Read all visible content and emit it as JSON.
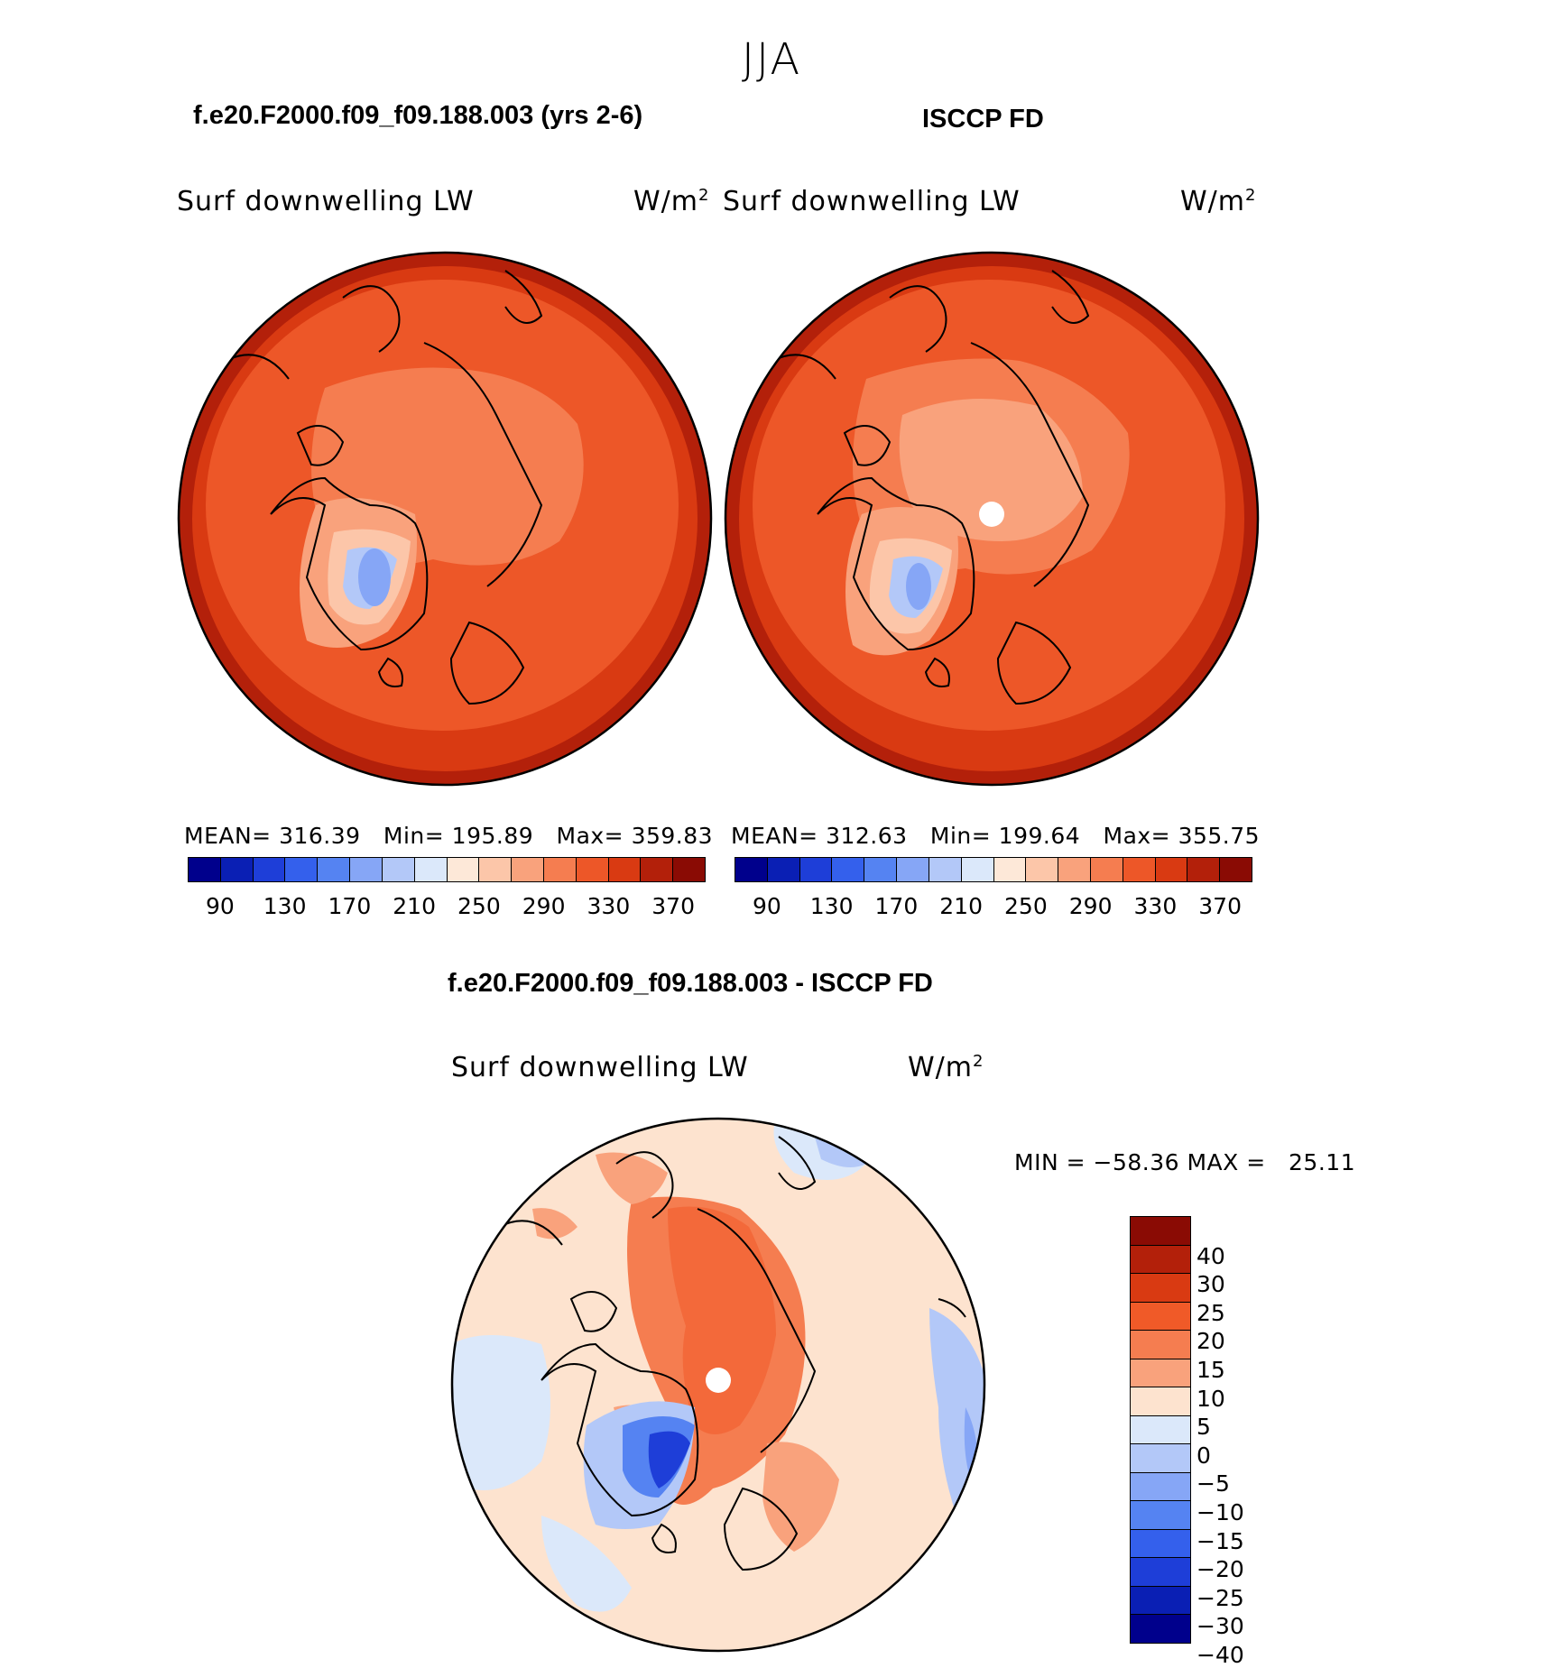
{
  "figure": {
    "season": "JJA",
    "model_title": "f.e20.F2000.f09_f09.188.003 (yrs 2-6)",
    "obs_title": "ISCCP FD",
    "diff_title": "f.e20.F2000.f09_f09.188.003 - ISCCP FD"
  },
  "panels": {
    "model": {
      "variable": "Surf downwelling LW",
      "units": "W/m",
      "units_sup": "2",
      "mean_label": "MEAN=",
      "mean": "316.39",
      "min_label": "Min=",
      "min": "195.89",
      "max_label": "Max=",
      "max": "359.83"
    },
    "obs": {
      "variable": "Surf downwelling LW",
      "units": "W/m",
      "units_sup": "2",
      "mean_label": "MEAN=",
      "mean": "312.63",
      "min_label": "Min=",
      "min": "199.64",
      "max_label": "Max=",
      "max": "355.75"
    },
    "diff": {
      "variable": "Surf downwelling LW",
      "units": "W/m",
      "units_sup": "2",
      "min_label": "MIN =",
      "min": "−58.36",
      "max_label": "MAX =",
      "max": "25.11"
    }
  },
  "colorbars": {
    "absolute": {
      "colors": [
        "#00008c",
        "#0a1fb4",
        "#1e3ed8",
        "#3460ec",
        "#5583f2",
        "#86a6f6",
        "#b3c8f8",
        "#dbe8fa",
        "#fde8d8",
        "#fcc6a9",
        "#f9a27c",
        "#f57d50",
        "#ed5728",
        "#d93a12",
        "#b3200a",
        "#8a0b04"
      ],
      "ticks": [
        "90",
        "130",
        "170",
        "210",
        "250",
        "290",
        "330",
        "370"
      ]
    },
    "difference": {
      "colors": [
        "#8a0b04",
        "#b3200a",
        "#d93a12",
        "#f05a28",
        "#f57d50",
        "#f9a27c",
        "#fde3cf",
        "#dbe8fa",
        "#b3c8f8",
        "#86a6f6",
        "#5583f2",
        "#3460ec",
        "#1e3ed8",
        "#0a1fb4",
        "#00008c"
      ],
      "ticks": [
        "40",
        "30",
        "25",
        "20",
        "15",
        "10",
        "5",
        "0",
        "−5",
        "−10",
        "−15",
        "−20",
        "−25",
        "−30",
        "−40"
      ]
    }
  }
}
